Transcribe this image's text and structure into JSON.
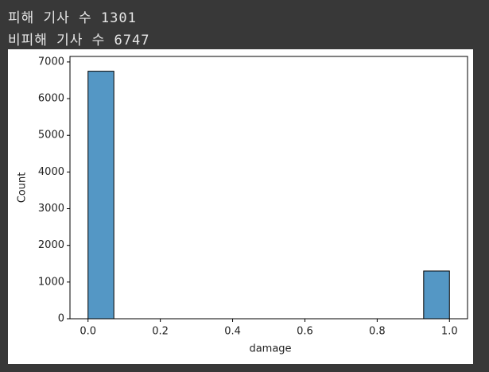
{
  "output_lines": [
    "피해 기사 수 1301",
    "비피해 기사 수 6747"
  ],
  "chart_data": {
    "type": "histogram",
    "x_label": "damage",
    "y_label": "Count",
    "bins": [
      0,
      0.0714,
      0.1429,
      0.2143,
      0.2857,
      0.3571,
      0.4286,
      0.5,
      0.5714,
      0.6429,
      0.7143,
      0.7857,
      0.8571,
      0.9286,
      1
    ],
    "values": [
      6747,
      0,
      0,
      0,
      0,
      0,
      0,
      0,
      0,
      0,
      0,
      0,
      0,
      1301
    ],
    "color": "#5497c5",
    "xlim": [
      -0.05,
      1.05
    ],
    "ylim": [
      0,
      7150
    ],
    "xticks": [
      {
        "value": 0,
        "label": "0.0"
      },
      0.2,
      0.4,
      0.6,
      0.8,
      {
        "value": 1,
        "label": "1.0"
      }
    ],
    "yticks": [
      0,
      1000,
      2000,
      3000,
      4000,
      5000,
      6000,
      7000
    ]
  }
}
